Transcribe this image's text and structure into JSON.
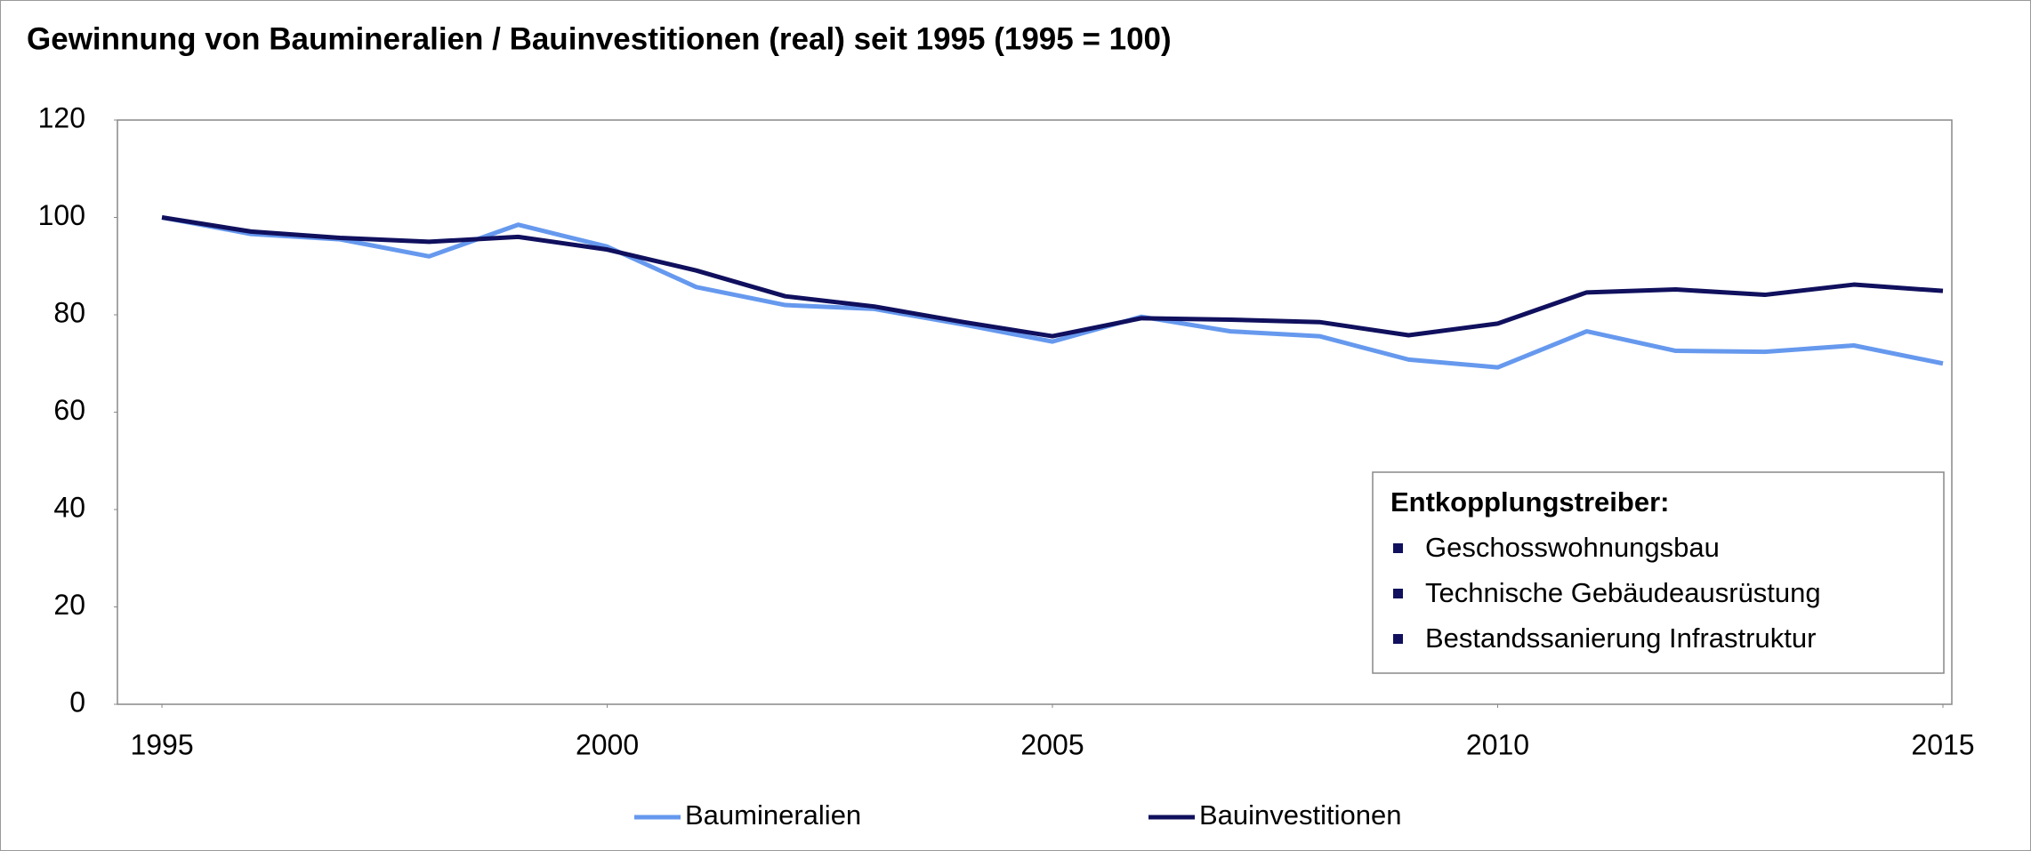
{
  "chart_data": {
    "type": "line",
    "title": "Gewinnung von Baumineralien / Bauinvestitionen (real) seit 1995 (1995 = 100)",
    "x": [
      1995,
      1996,
      1997,
      1998,
      1999,
      2000,
      2001,
      2002,
      2003,
      2004,
      2005,
      2006,
      2007,
      2008,
      2009,
      2010,
      2011,
      2012,
      2013,
      2014,
      2015
    ],
    "series": [
      {
        "name": "Baumineralien",
        "color": "#6699ee",
        "values": [
          100,
          96.6,
          95.5,
          92,
          98.5,
          94,
          85.7,
          82,
          81.2,
          78,
          74.5,
          79.6,
          76.6,
          75.6,
          70.8,
          69.2,
          76.6,
          72.6,
          72.4,
          73.7,
          70
        ]
      },
      {
        "name": "Bauinvestitionen",
        "color": "#10105e",
        "values": [
          100,
          97.1,
          95.8,
          95,
          96,
          93.4,
          89.1,
          83.8,
          81.7,
          78.5,
          75.6,
          79.3,
          79,
          78.5,
          75.8,
          78.2,
          84.6,
          85.2,
          84.1,
          86.2,
          84.9
        ]
      }
    ],
    "xlim": [
      1994.5,
      2015.1
    ],
    "xticks": [
      1995,
      2000,
      2005,
      2010,
      2015
    ],
    "ylim": [
      0,
      120
    ],
    "yticks": [
      0,
      20,
      40,
      60,
      80,
      100,
      120
    ],
    "legend": "bottom",
    "annotation": {
      "title": "Entkopplungstreiber:",
      "items": [
        "Geschosswohnungsbau",
        "Technische Gebäudeausrüstung",
        "Bestandssanierung Infrastruktur"
      ],
      "bullet_color": "#10105e"
    }
  }
}
